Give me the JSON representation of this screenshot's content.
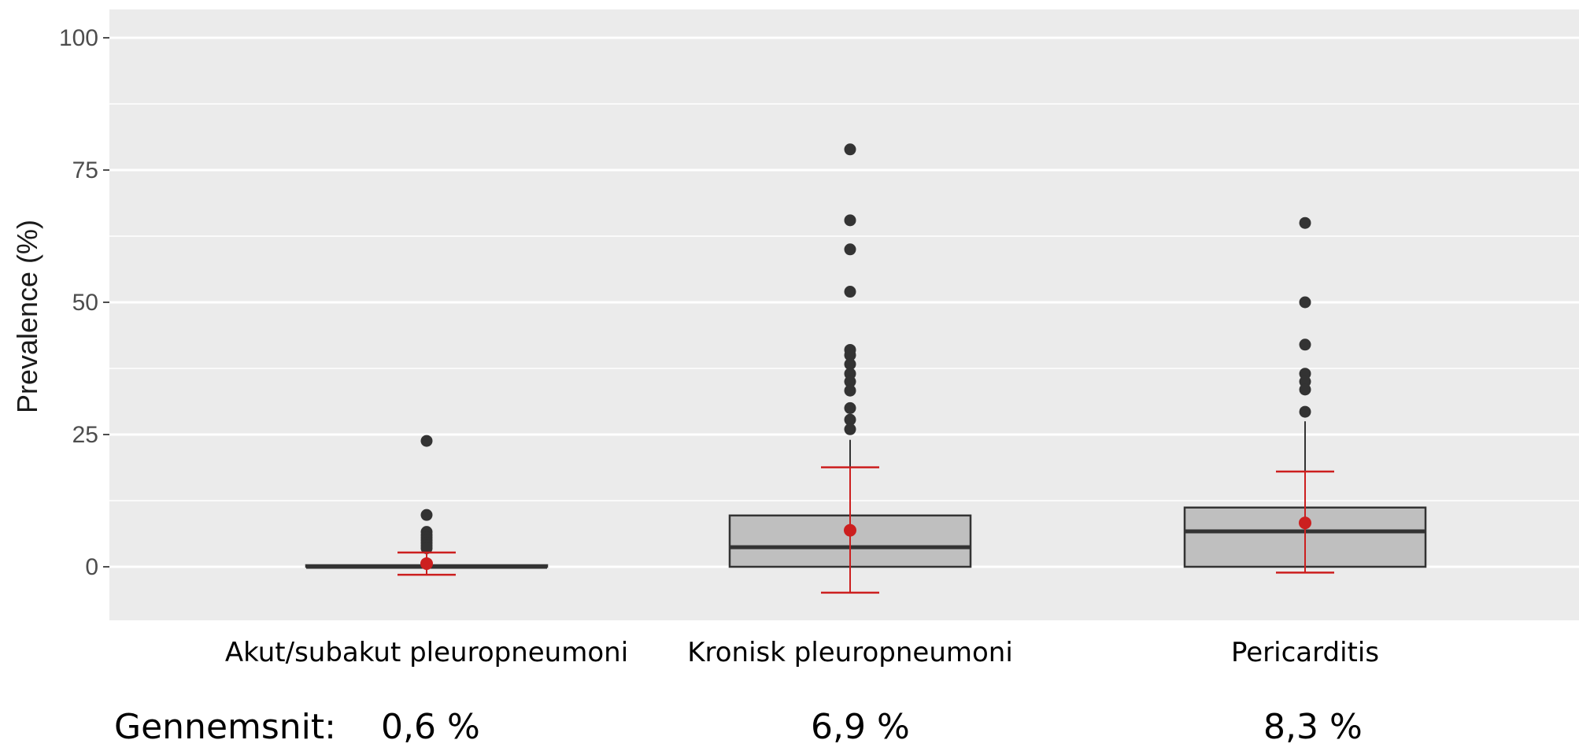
{
  "chart_data": {
    "type": "box",
    "ylabel": "Prevalence (%)",
    "ylim": [
      -10,
      105
    ],
    "yticks": [
      0,
      25,
      50,
      75,
      100
    ],
    "categories": [
      "Akut/subakut pleuropneumoni",
      "Kronisk pleuropneumoni",
      "Pericarditis"
    ],
    "boxes": [
      {
        "category": "Akut/subakut pleuropneumoni",
        "q1": 0,
        "median": 0,
        "q3": 0.3,
        "whisker_low": 0,
        "whisker_high": 0.3,
        "outliers": [
          23.8,
          9.8,
          6.6,
          6.0,
          5.5,
          5.0,
          4.5,
          4.0,
          3.5
        ],
        "mean": 0.6,
        "err_low": -1.5,
        "err_high": 2.7
      },
      {
        "category": "Kronisk pleuropneumoni",
        "q1": 0,
        "median": 3.7,
        "q3": 9.7,
        "whisker_low": 0,
        "whisker_high": 24.0,
        "outliers": [
          78.9,
          65.5,
          60.0,
          52.0,
          41.0,
          40.0,
          38.3,
          36.5,
          35.0,
          33.3,
          30.0,
          27.8,
          26.0
        ],
        "mean": 6.9,
        "err_low": -4.9,
        "err_high": 18.8
      },
      {
        "category": "Pericarditis",
        "q1": 0,
        "median": 6.7,
        "q3": 11.2,
        "whisker_low": 0,
        "whisker_high": 27.5,
        "outliers": [
          65.0,
          50.0,
          42.0,
          36.5,
          35.0,
          33.5,
          29.3
        ],
        "mean": 8.3,
        "err_low": -1.1,
        "err_high": 18.0
      }
    ],
    "colors": {
      "panel": "#ebebeb",
      "grid": "#ffffff",
      "box_fill": "#bfbfbf",
      "box_line": "#333333",
      "outlier": "#333333",
      "mean": "#cc1f1f"
    }
  },
  "mean_row": {
    "label": "Gennemsnit:",
    "values": [
      "0,6 %",
      "6,9 %",
      "8,3 %"
    ]
  }
}
